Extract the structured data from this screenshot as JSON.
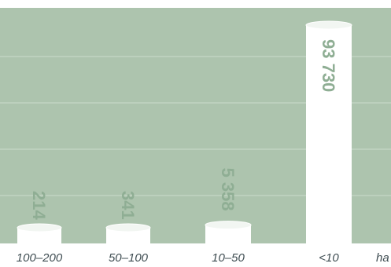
{
  "chart_data": {
    "type": "bar",
    "categories": [
      "100–200",
      "50–100",
      "10–50",
      "<10"
    ],
    "values": [
      214,
      341,
      5358,
      93730
    ],
    "value_labels": [
      "214",
      "341",
      "5 358",
      "93 730"
    ],
    "partial_label": "ha",
    "ylim": [
      0,
      100000
    ],
    "grid": true,
    "legend": "none"
  },
  "colors": {
    "plot_background": "#adc4ae",
    "grid": "#c6d7c6",
    "bar_fill": "#ffffff",
    "bar_top": "#f2f6f2",
    "value_label": "#8fae94",
    "category_label": "#3f4d52"
  }
}
